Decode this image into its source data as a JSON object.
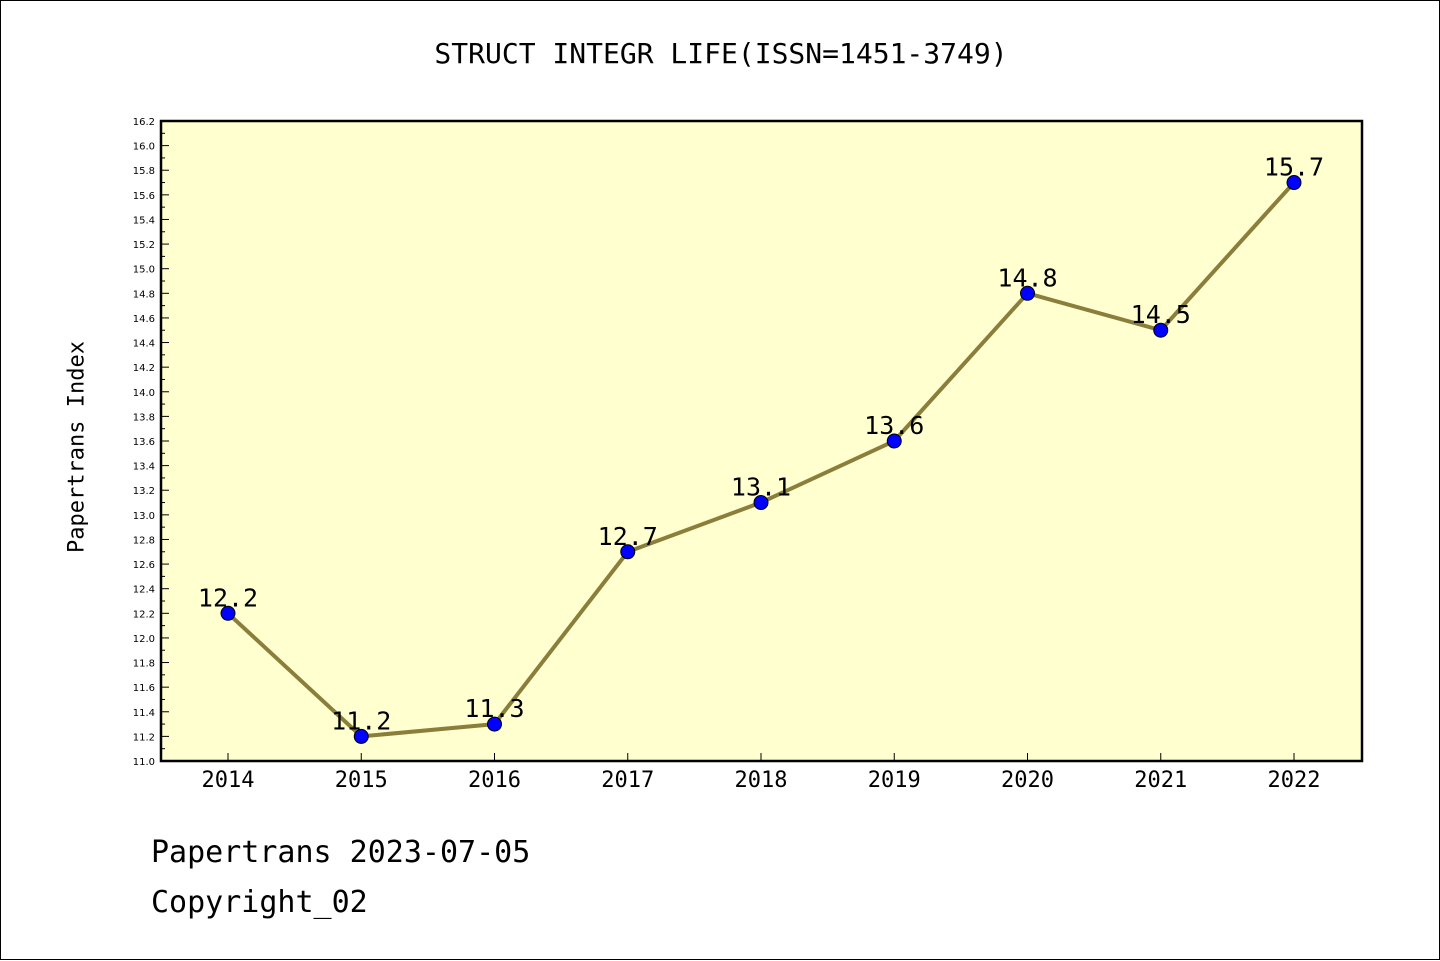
{
  "colors": {
    "plot_background": "#ffffd0",
    "line": "#8b7e3a",
    "marker": "#0000ff",
    "axis": "#000000"
  },
  "chart_data": {
    "type": "line",
    "title": "STRUCT INTEGR LIFE(ISSN=1451-3749)",
    "ylabel": "Papertrans Index",
    "xlabel": "",
    "categories": [
      "2014",
      "2015",
      "2016",
      "2017",
      "2018",
      "2019",
      "2020",
      "2021",
      "2022"
    ],
    "values": [
      12.2,
      11.2,
      11.3,
      12.7,
      13.1,
      13.6,
      14.8,
      14.5,
      15.7
    ],
    "data_labels": [
      "12.2",
      "11.2",
      "11.3",
      "12.7",
      "13.1",
      "13.6",
      "14.8",
      "14.5",
      "15.7"
    ],
    "ylim": [
      11.0,
      16.2
    ],
    "ytick_step": 0.2,
    "yticks": [
      "11.0",
      "11.2",
      "11.4",
      "11.6",
      "11.8",
      "12.0",
      "12.2",
      "12.4",
      "12.6",
      "12.8",
      "13.0",
      "13.2",
      "13.4",
      "13.6",
      "13.8",
      "14.0",
      "14.2",
      "14.4",
      "14.6",
      "14.8",
      "15.0",
      "15.2",
      "15.4",
      "15.6",
      "15.8",
      "16.0",
      "16.2"
    ],
    "grid": false,
    "legend": "none"
  },
  "footer": {
    "line1": "Papertrans 2023-07-05",
    "line2": "Copyright_02"
  }
}
